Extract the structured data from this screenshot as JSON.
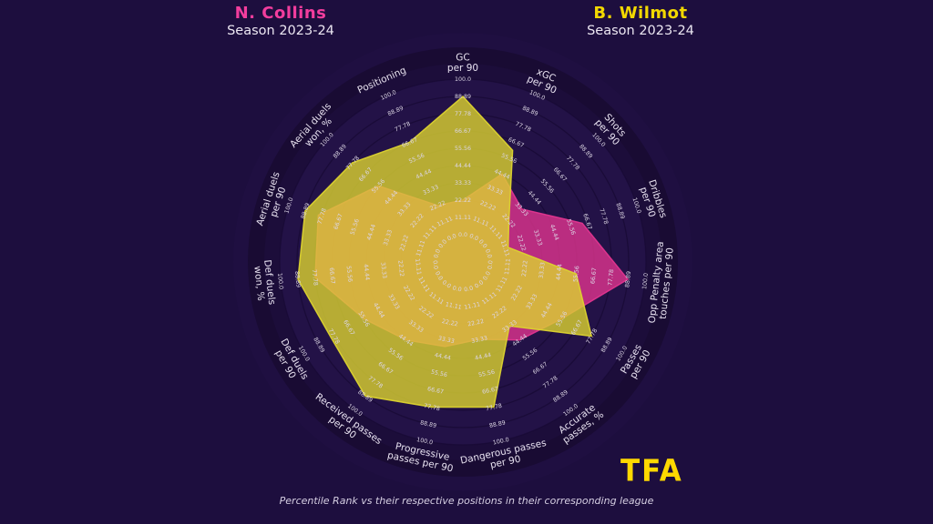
{
  "header": {
    "player_left": {
      "name": "N. Collins",
      "season": "Season 2023-24",
      "color": "#f23d9d"
    },
    "player_right": {
      "name": "B. Wilmot",
      "season": "Season 2023-24",
      "color": "#f2d800"
    }
  },
  "footer": {
    "logo": "TFA",
    "caption": "Percentile Rank vs their respective positions in their corresponding league"
  },
  "chart_data": {
    "type": "radar",
    "title": "Percentile Rank radar — N. Collins vs B. Wilmot, Season 2023-24",
    "rlim": [
      0,
      100
    ],
    "grid": true,
    "axes": [
      "GC per 90",
      "xGC per 90",
      "Shots per 90",
      "Dribbles per 90",
      "Opp Penalty area touches per 90",
      "Passes per 90",
      "Accurate passes, %",
      "Dangerous passes per 90",
      "Progressive passes per 90",
      "Received passes per 90",
      "Def duels per 90",
      "Def duels won, %",
      "Aerial duels per 90",
      "Aerial duels won, %",
      "Positioning"
    ],
    "axis_label_lines": [
      [
        "GC",
        "per 90"
      ],
      [
        "xGC",
        "per 90"
      ],
      [
        "Shots",
        "per 90"
      ],
      [
        "Dribbles",
        "per 90"
      ],
      [
        "Opp Penalty area",
        "touches per 90"
      ],
      [
        "Passes",
        "per 90"
      ],
      [
        "Accurate",
        "passes, %"
      ],
      [
        "Dangerous passes",
        "per 90"
      ],
      [
        "Progressive",
        "passes per 90"
      ],
      [
        "Received passes",
        "per 90"
      ],
      [
        "Def duels",
        "per 90"
      ],
      [
        "Def duels",
        "won, %"
      ],
      [
        "Aerial duels",
        "per 90"
      ],
      [
        "Aerial duels",
        "won, %"
      ],
      [
        "Positioning"
      ]
    ],
    "tick_values": [
      0,
      11.11,
      22.22,
      33.33,
      44.44,
      55.56,
      66.67,
      77.78,
      88.89,
      100.0
    ],
    "tick_labels": [
      "0.0",
      "11.11",
      "22.22",
      "33.33",
      "44.44",
      "55.56",
      "66.67",
      "77.78",
      "88.89",
      "100.0"
    ],
    "series": [
      {
        "name": "N. Collins",
        "color": "#e0358f",
        "fill_opacity": 0.8,
        "values": [
          22.2,
          44.4,
          33.3,
          63.0,
          88.9,
          55.6,
          44.4,
          33.3,
          38.0,
          44.4,
          55.6,
          77.8,
          80.0,
          55.6,
          22.2
        ]
      },
      {
        "name": "B. Wilmot",
        "color": "#dcd32f",
        "fill_opacity": 0.8,
        "values": [
          88.9,
          61.0,
          22.2,
          13.0,
          55.6,
          77.8,
          33.3,
          77.8,
          77.8,
          88.9,
          80.0,
          88.9,
          88.9,
          77.8,
          66.7
        ]
      }
    ],
    "legend_position": "top (player names act as legend)",
    "background_color": "#1d0e3e",
    "tick_text_color": "#ddd6e6",
    "axis_title_color": "#e8e2f0"
  }
}
